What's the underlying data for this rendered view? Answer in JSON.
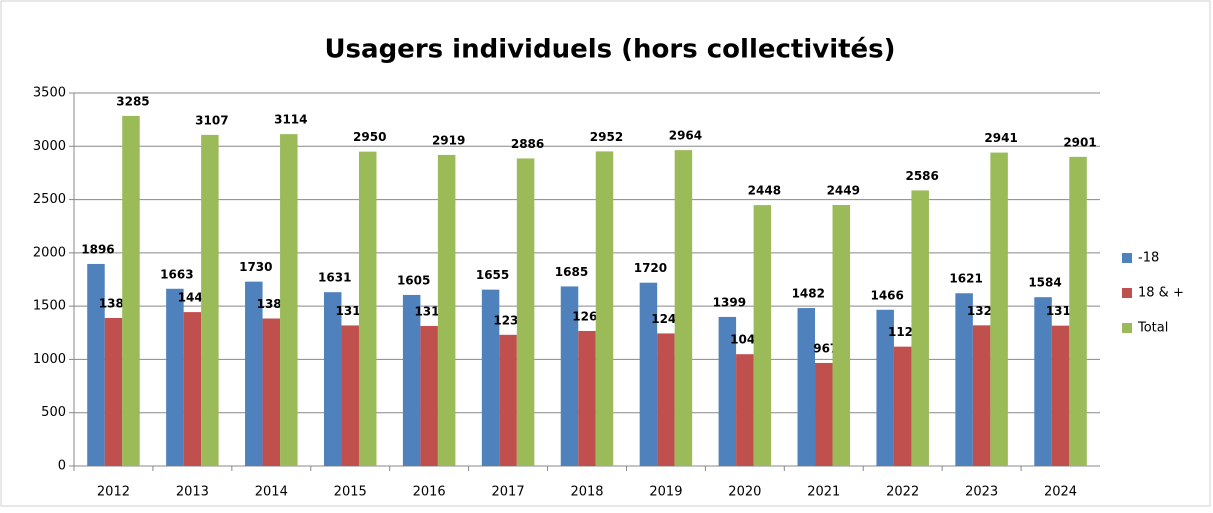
{
  "chart_data": {
    "type": "bar",
    "title": "Usagers individuels (hors collectivités)",
    "categories": [
      "2012",
      "2013",
      "2014",
      "2015",
      "2016",
      "2017",
      "2018",
      "2019",
      "2020",
      "2021",
      "2022",
      "2023",
      "2024"
    ],
    "series": [
      {
        "name": "-18",
        "color": "#4f81bd",
        "values": [
          1896,
          1663,
          1730,
          1631,
          1605,
          1655,
          1685,
          1720,
          1399,
          1482,
          1466,
          1621,
          1584
        ]
      },
      {
        "name": "18 & +",
        "color": "#c0504d",
        "values": [
          1389,
          1444,
          1384,
          1319,
          1314,
          1231,
          1267,
          1244,
          1049,
          967,
          1120,
          1320,
          1317
        ]
      },
      {
        "name": "Total",
        "color": "#9bbb59",
        "values": [
          3285,
          3107,
          3114,
          2950,
          2919,
          2886,
          2952,
          2964,
          2448,
          2449,
          2586,
          2941,
          2901
        ]
      }
    ],
    "ylim": [
      0,
      3500
    ],
    "yticks": [
      0,
      500,
      1000,
      1500,
      2000,
      2500,
      3000,
      3500
    ],
    "grid": true,
    "legend": "right"
  }
}
